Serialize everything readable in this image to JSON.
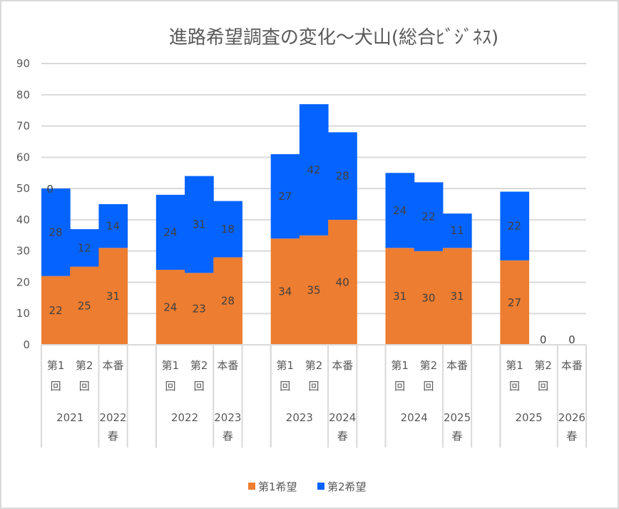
{
  "chart_data": {
    "type": "bar",
    "stacked": true,
    "title": "進路希望調査の変化～犬山(総合ﾋﾞｼﾞﾈｽ)",
    "xlabel": "",
    "ylabel": "",
    "ylim": [
      0,
      90
    ],
    "y_ticks": [
      0,
      10,
      20,
      30,
      40,
      50,
      60,
      70,
      80,
      90
    ],
    "grid": true,
    "legend_position": "bottom",
    "groups": [
      {
        "year_label": "2021",
        "next_label_line1": "2022",
        "next_label_line2": "春"
      },
      {
        "year_label": "2022",
        "next_label_line1": "2023",
        "next_label_line2": "春"
      },
      {
        "year_label": "2023",
        "next_label_line1": "2024",
        "next_label_line2": "春"
      },
      {
        "year_label": "2024",
        "next_label_line1": "2025",
        "next_label_line2": "春"
      },
      {
        "year_label": "2025",
        "next_label_line1": "2026",
        "next_label_line2": "春"
      }
    ],
    "subcategory_labels": {
      "first_line1": "第1",
      "first_line2": "回",
      "second_line1": "第2",
      "second_line2": "回",
      "final": "本番"
    },
    "categories": [
      "2021 第1回",
      "2021 第2回",
      "2022春 本番",
      "2022 第1回",
      "2022 第2回",
      "2023春 本番",
      "2023 第1回",
      "2023 第2回",
      "2024春 本番",
      "2024 第1回",
      "2024 第2回",
      "2025春 本番",
      "2025 第1回",
      "2025 第2回",
      "2026春 本番"
    ],
    "series": [
      {
        "name": "第1希望",
        "color": "#ED7D31",
        "values": [
          22,
          25,
          31,
          24,
          23,
          28,
          34,
          35,
          40,
          31,
          30,
          31,
          27,
          0,
          0
        ]
      },
      {
        "name": "第2希望",
        "color": "#0563FF",
        "values": [
          28,
          12,
          14,
          24,
          31,
          18,
          27,
          42,
          28,
          24,
          22,
          11,
          22,
          null,
          null
        ]
      }
    ],
    "extra_labels": [
      {
        "category_index": 0,
        "text": "0",
        "position": "top of stack"
      }
    ]
  }
}
